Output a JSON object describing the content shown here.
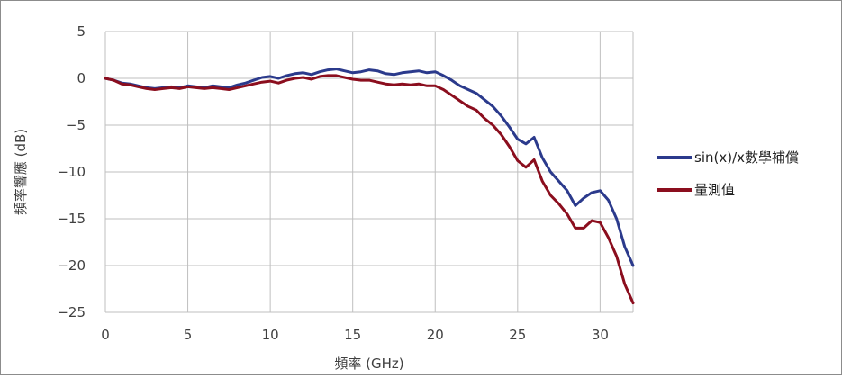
{
  "chart_data": {
    "type": "line",
    "xlabel": "頻率 (GHz)",
    "ylabel": "頻率響應 (dB)",
    "xlim": [
      0,
      32
    ],
    "ylim": [
      -25,
      5
    ],
    "xticks": [
      0,
      5,
      10,
      15,
      20,
      25,
      30
    ],
    "yticks": [
      5,
      0,
      -5,
      -10,
      -15,
      -20,
      -25
    ],
    "grid": true,
    "legend_position": "right",
    "series": [
      {
        "name": "sin(x)/x數學補償",
        "color": "#2b3a8c",
        "x": [
          0,
          0.5,
          1,
          1.5,
          2,
          2.5,
          3,
          3.5,
          4,
          4.5,
          5,
          5.5,
          6,
          6.5,
          7,
          7.5,
          8,
          8.5,
          9,
          9.5,
          10,
          10.5,
          11,
          11.5,
          12,
          12.5,
          13,
          13.5,
          14,
          14.5,
          15,
          15.5,
          16,
          16.5,
          17,
          17.5,
          18,
          18.5,
          19,
          19.5,
          20,
          20.5,
          21,
          21.5,
          22,
          22.5,
          23,
          23.5,
          24,
          24.5,
          25,
          25.5,
          26,
          26.5,
          27,
          27.5,
          28,
          28.5,
          29,
          29.5,
          30,
          30.5,
          31,
          31.5,
          32
        ],
        "values": [
          0,
          -0.2,
          -0.5,
          -0.6,
          -0.8,
          -1.0,
          -1.1,
          -1.0,
          -0.9,
          -1.0,
          -0.8,
          -0.9,
          -1.0,
          -0.8,
          -0.9,
          -1.0,
          -0.7,
          -0.5,
          -0.2,
          0.1,
          0.2,
          0.0,
          0.3,
          0.5,
          0.6,
          0.4,
          0.7,
          0.9,
          1.0,
          0.8,
          0.6,
          0.7,
          0.9,
          0.8,
          0.5,
          0.4,
          0.6,
          0.7,
          0.8,
          0.6,
          0.7,
          0.3,
          -0.2,
          -0.8,
          -1.2,
          -1.6,
          -2.3,
          -3.0,
          -4.0,
          -5.2,
          -6.5,
          -7.0,
          -6.3,
          -8.5,
          -10.0,
          -11.0,
          -12.0,
          -13.6,
          -12.8,
          -12.2,
          -12.0,
          -13.0,
          -15.0,
          -18.0,
          -20.0
        ]
      },
      {
        "name": "量測值",
        "color": "#8b0e1e",
        "x": [
          0,
          0.5,
          1,
          1.5,
          2,
          2.5,
          3,
          3.5,
          4,
          4.5,
          5,
          5.5,
          6,
          6.5,
          7,
          7.5,
          8,
          8.5,
          9,
          9.5,
          10,
          10.5,
          11,
          11.5,
          12,
          12.5,
          13,
          13.5,
          14,
          14.5,
          15,
          15.5,
          16,
          16.5,
          17,
          17.5,
          18,
          18.5,
          19,
          19.5,
          20,
          20.5,
          21,
          21.5,
          22,
          22.5,
          23,
          23.5,
          24,
          24.5,
          25,
          25.5,
          26,
          26.5,
          27,
          27.5,
          28,
          28.5,
          29,
          29.5,
          30,
          30.5,
          31,
          31.5,
          32
        ],
        "values": [
          0,
          -0.2,
          -0.6,
          -0.7,
          -0.9,
          -1.1,
          -1.2,
          -1.1,
          -1.0,
          -1.1,
          -0.9,
          -1.0,
          -1.1,
          -1.0,
          -1.1,
          -1.2,
          -1.0,
          -0.8,
          -0.6,
          -0.4,
          -0.3,
          -0.5,
          -0.2,
          0.0,
          0.1,
          -0.1,
          0.2,
          0.3,
          0.3,
          0.1,
          -0.1,
          -0.2,
          -0.2,
          -0.4,
          -0.6,
          -0.7,
          -0.6,
          -0.7,
          -0.6,
          -0.8,
          -0.8,
          -1.2,
          -1.8,
          -2.4,
          -3.0,
          -3.4,
          -4.3,
          -5.0,
          -6.0,
          -7.3,
          -8.8,
          -9.5,
          -8.7,
          -11.0,
          -12.5,
          -13.4,
          -14.5,
          -16.0,
          -16.0,
          -15.2,
          -15.4,
          -17.0,
          -19.0,
          -22.0,
          -24.0
        ]
      }
    ]
  }
}
